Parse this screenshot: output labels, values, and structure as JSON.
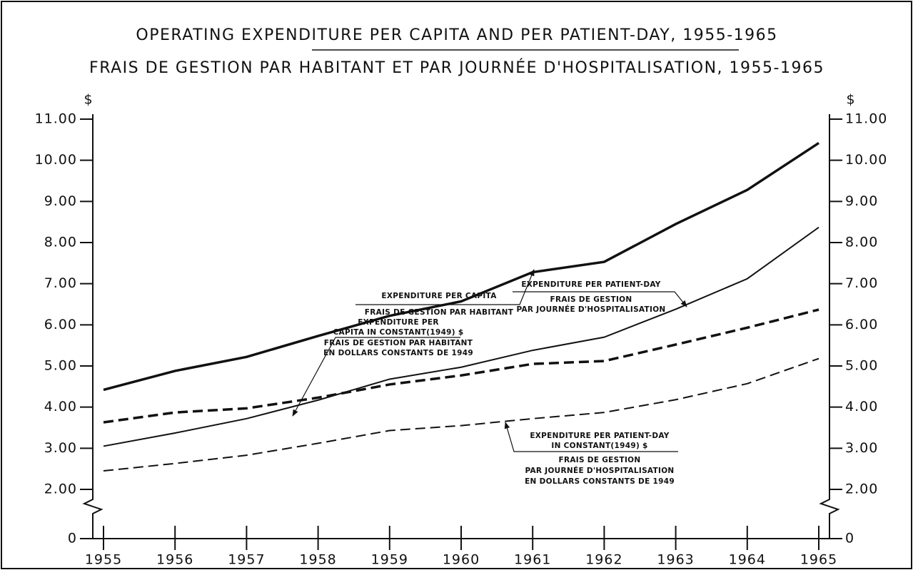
{
  "chart_data": {
    "type": "line",
    "title": "OPERATING EXPENDITURE PER CAPITA AND PER PATIENT-DAY, 1955-1965",
    "subtitle": "FRAIS DE GESTION PAR HABITANT ET PAR JOURNÉE D'HOSPITALISATION, 1955-1965",
    "y_label": "$",
    "x": [
      1955,
      1956,
      1957,
      1958,
      1959,
      1960,
      1961,
      1962,
      1963,
      1964,
      1965
    ],
    "xlim": [
      1955,
      1965
    ],
    "xticks": [
      1955,
      1956,
      1957,
      1958,
      1959,
      1960,
      1961,
      1962,
      1963,
      1964,
      1965
    ],
    "ylim": [
      0,
      11
    ],
    "axis_break": [
      0,
      2
    ],
    "yticks": [
      0,
      {
        "value": 2,
        "label": "2.00"
      },
      {
        "value": 3,
        "label": "3.00"
      },
      {
        "value": 4,
        "label": "4.00"
      },
      {
        "value": 5,
        "label": "5.00"
      },
      {
        "value": 6,
        "label": "6.00"
      },
      {
        "value": 7,
        "label": "7.00"
      },
      {
        "value": 8,
        "label": "8.00"
      },
      {
        "value": 9,
        "label": "9.00"
      },
      {
        "value": 10,
        "label": "10.00"
      },
      {
        "value": 11,
        "label": "11.00"
      }
    ],
    "series": [
      {
        "labels": [
          "EXPENDITURE PER CAPITA",
          "FRAIS DE GESTION PAR HABITANT"
        ],
        "color": "#111111",
        "style": "solid",
        "width": 3.5,
        "values": [
          4.42,
          4.88,
          5.22,
          5.73,
          6.22,
          6.57,
          7.28,
          7.53,
          8.45,
          9.28,
          10.42
        ]
      },
      {
        "labels": [
          "EXPENDITURE PER PATIENT-DAY",
          "FRAIS DE GESTION",
          "PAR JOURNÉE D'HOSPITALISATION"
        ],
        "color": "#111111",
        "style": "solid",
        "width": 2,
        "values": [
          3.05,
          3.37,
          3.72,
          4.17,
          4.68,
          4.97,
          5.38,
          5.7,
          6.38,
          7.12,
          8.37
        ]
      },
      {
        "labels": [
          "EXPENDITURE PER",
          "CAPITA IN CONSTANT(1949) $",
          "FRAIS DE GESTION PAR HABITANT",
          "EN DOLLARS CONSTANTS DE 1949"
        ],
        "color": "#111111",
        "style": "dashed",
        "width": 3.5,
        "values": [
          3.63,
          3.87,
          3.97,
          4.23,
          4.55,
          4.77,
          5.05,
          5.12,
          5.52,
          5.93,
          6.37
        ]
      },
      {
        "labels": [
          "EXPENDITURE PER PATIENT-DAY",
          "IN CONSTANT(1949) $",
          "FRAIS DE GESTION",
          "PAR JOURNÉE D'HOSPITALISATION",
          "EN DOLLARS CONSTANTS DE 1949"
        ],
        "color": "#111111",
        "style": "dashed",
        "width": 2,
        "values": [
          2.45,
          2.63,
          2.83,
          3.12,
          3.43,
          3.55,
          3.72,
          3.87,
          4.18,
          4.57,
          5.18
        ]
      }
    ]
  }
}
